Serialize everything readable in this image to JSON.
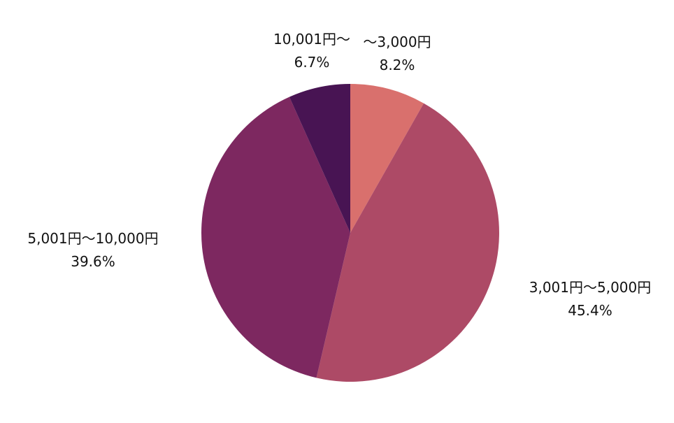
{
  "chart_data": {
    "type": "pie",
    "title": "",
    "start_angle_deg": 0,
    "direction": "clockwise",
    "slices": [
      {
        "label": "～3,000円",
        "value": 8.2,
        "percent_label": "8.2%",
        "color": "#d9706d"
      },
      {
        "label": "3,001円～5,000円",
        "value": 45.4,
        "percent_label": "45.4%",
        "color": "#ad4a66"
      },
      {
        "label": "5,001円～10,000円",
        "value": 39.6,
        "percent_label": "39.6%",
        "color": "#7d2860"
      },
      {
        "label": "10,001円～",
        "value": 6.7,
        "percent_label": "6.7%",
        "color": "#481453"
      }
    ]
  }
}
